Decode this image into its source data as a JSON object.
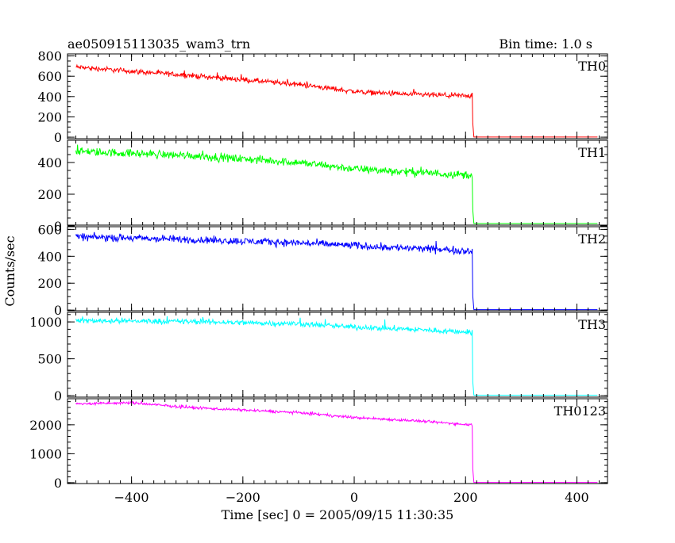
{
  "header": {
    "title": "ae050915113035_wam3_trn",
    "bin_time": "Bin time: 1.0 s"
  },
  "axes": {
    "ylabel": "Counts/sec",
    "xlabel": "Time [sec] 0 = 2005/09/15 11:30:35",
    "xlim": [
      -515,
      455
    ],
    "x_ticks_major": [
      -400,
      -200,
      0,
      200,
      400
    ],
    "x_tick_labels": [
      "−400",
      "−200",
      "0",
      "200",
      "400"
    ],
    "x_ticks_minor_step": 20
  },
  "chart_data": {
    "type": "line",
    "x_start": -500,
    "x_step": 1.0,
    "drop_time": 213,
    "x_end": 437,
    "panels": [
      {
        "name": "TH0",
        "color": "#ff0000",
        "ylim": [
          -15,
          820
        ],
        "y_ticks": [
          0,
          200,
          400,
          600,
          800
        ],
        "y_tick_labels": [
          "0",
          "200",
          "400",
          "600",
          "800"
        ],
        "y_minor_step": 50,
        "trend": [
          [
            -500,
            690
          ],
          [
            -300,
            610
          ],
          [
            -100,
            520
          ],
          [
            0,
            450
          ],
          [
            100,
            420
          ],
          [
            212,
            405
          ]
        ],
        "noise": 22,
        "after_level": 2
      },
      {
        "name": "TH1",
        "color": "#00ff00",
        "ylim": [
          5,
          540
        ],
        "y_ticks": [
          0,
          200,
          400
        ],
        "y_tick_labels": [
          "0",
          "200",
          "400"
        ],
        "y_minor_step": 50,
        "trend": [
          [
            -500,
            470
          ],
          [
            -300,
            445
          ],
          [
            -100,
            400
          ],
          [
            0,
            360
          ],
          [
            100,
            340
          ],
          [
            212,
            320
          ]
        ],
        "noise": 22,
        "after_level": 15
      },
      {
        "name": "TH2",
        "color": "#0000ff",
        "ylim": [
          -5,
          620
        ],
        "y_ticks": [
          0,
          200,
          400,
          600
        ],
        "y_tick_labels": [
          "0",
          "200",
          "400",
          "600"
        ],
        "y_minor_step": 50,
        "trend": [
          [
            -500,
            545
          ],
          [
            -300,
            525
          ],
          [
            -100,
            500
          ],
          [
            0,
            480
          ],
          [
            100,
            460
          ],
          [
            212,
            440
          ]
        ],
        "noise": 24,
        "after_level": 3
      },
      {
        "name": "TH3",
        "color": "#00ffff",
        "ylim": [
          -20,
          1130
        ],
        "y_ticks": [
          0,
          500,
          1000
        ],
        "y_tick_labels": [
          "0",
          "500",
          "1000"
        ],
        "y_minor_step": 100,
        "trend": [
          [
            -500,
            1020
          ],
          [
            -300,
            1005
          ],
          [
            -100,
            975
          ],
          [
            0,
            930
          ],
          [
            100,
            900
          ],
          [
            212,
            860
          ]
        ],
        "noise": 32,
        "after_level": 5
      },
      {
        "name": "TH0123",
        "color": "#ff00ff",
        "ylim": [
          -30,
          2900
        ],
        "y_ticks": [
          0,
          1000,
          2000
        ],
        "y_tick_labels": [
          "0",
          "1000",
          "2000"
        ],
        "y_minor_step": 200,
        "trend": [
          [
            -500,
            2720
          ],
          [
            -400,
            2760
          ],
          [
            -300,
            2600
          ],
          [
            -100,
            2420
          ],
          [
            0,
            2250
          ],
          [
            100,
            2150
          ],
          [
            212,
            2000
          ]
        ],
        "noise": 40,
        "after_level": 8
      }
    ]
  }
}
